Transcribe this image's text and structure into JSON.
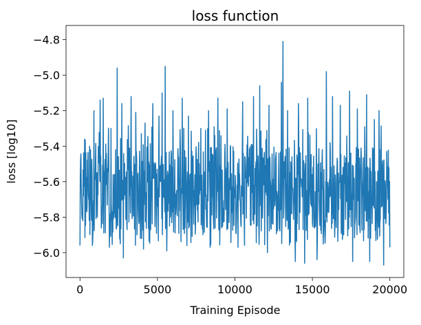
{
  "chart_data": {
    "type": "line",
    "title": "loss function",
    "xlabel": "Training Episode",
    "ylabel": "loss [log10]",
    "xlim": [
      -900,
      20900
    ],
    "ylim": [
      -6.14,
      -4.72
    ],
    "xticks": [
      0,
      5000,
      10000,
      15000,
      20000
    ],
    "xtick_labels": [
      "0",
      "5000",
      "10000",
      "15000",
      "20000"
    ],
    "yticks": [
      -6.0,
      -5.8,
      -5.6,
      -5.4,
      -5.2,
      -5.0,
      -4.8
    ],
    "ytick_labels": [
      "−6.0",
      "−5.8",
      "−5.6",
      "−5.4",
      "−5.2",
      "−5.0",
      "−4.8"
    ],
    "grid": false,
    "series": [
      {
        "color": "#1f77b4",
        "points": 20000,
        "band": {
          "low": -5.9,
          "high": -5.4,
          "mean": -5.65
        },
        "peaks": [
          [
            0,
            -5.09
          ],
          [
            300,
            -5.36
          ],
          [
            900,
            -5.2
          ],
          [
            1300,
            -5.14
          ],
          [
            1500,
            -5.13
          ],
          [
            2000,
            -5.3
          ],
          [
            2400,
            -4.96
          ],
          [
            2700,
            -5.16
          ],
          [
            3300,
            -5.12
          ],
          [
            3600,
            -5.21
          ],
          [
            4200,
            -5.27
          ],
          [
            4700,
            -5.16
          ],
          [
            5100,
            -5.23
          ],
          [
            5300,
            -5.1
          ],
          [
            5500,
            -4.95
          ],
          [
            6000,
            -5.2
          ],
          [
            6600,
            -5.13
          ],
          [
            7000,
            -5.23
          ],
          [
            7800,
            -5.3
          ],
          [
            8300,
            -5.2
          ],
          [
            8900,
            -5.13
          ],
          [
            9500,
            -5.19
          ],
          [
            10500,
            -5.15
          ],
          [
            11200,
            -5.12
          ],
          [
            11600,
            -5.06
          ],
          [
            12200,
            -5.17
          ],
          [
            13000,
            -5.04
          ],
          [
            13100,
            -4.81
          ],
          [
            13400,
            -5.2
          ],
          [
            14100,
            -5.16
          ],
          [
            14700,
            -5.13
          ],
          [
            15300,
            -5.08
          ],
          [
            15900,
            -4.98
          ],
          [
            16300,
            -5.12
          ],
          [
            16800,
            -5.17
          ],
          [
            17400,
            -5.09
          ],
          [
            17900,
            -5.19
          ],
          [
            18500,
            -5.11
          ],
          [
            19000,
            -5.25
          ],
          [
            19300,
            -5.2
          ],
          [
            19800,
            -5.43
          ]
        ],
        "troughs": [
          [
            0,
            -5.96
          ],
          [
            800,
            -5.96
          ],
          [
            1900,
            -5.97
          ],
          [
            2800,
            -6.03
          ],
          [
            4100,
            -5.98
          ],
          [
            5600,
            -5.99
          ],
          [
            6900,
            -5.96
          ],
          [
            8400,
            -5.97
          ],
          [
            10200,
            -5.97
          ],
          [
            12100,
            -6.0
          ],
          [
            13900,
            -6.05
          ],
          [
            14500,
            -6.06
          ],
          [
            15300,
            -6.04
          ],
          [
            17600,
            -6.05
          ],
          [
            18700,
            -6.05
          ],
          [
            19600,
            -6.07
          ],
          [
            20000,
            -5.97
          ]
        ]
      }
    ]
  }
}
